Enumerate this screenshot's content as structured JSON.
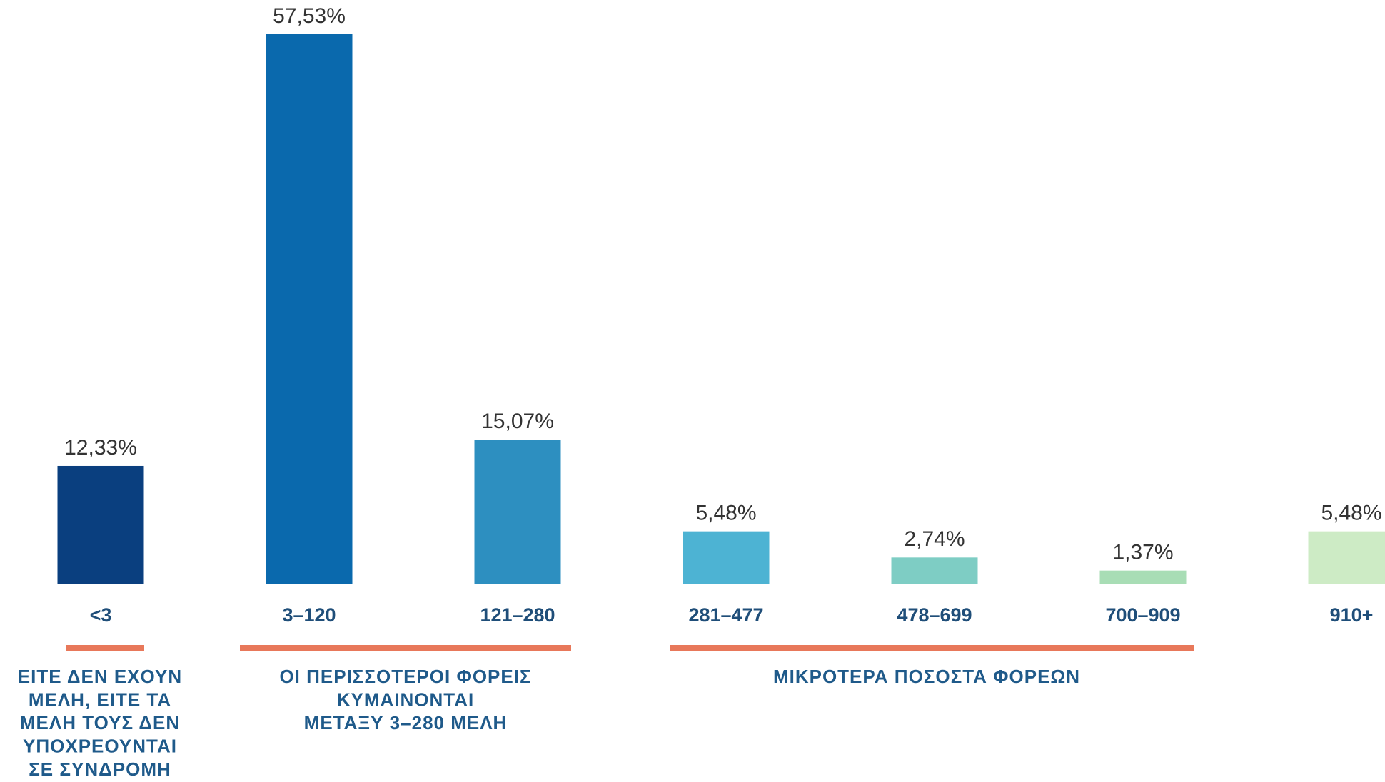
{
  "chart_data": {
    "type": "bar",
    "categories": [
      "<3",
      "3–120",
      "121–280",
      "281–477",
      "478–699",
      "700–909",
      "910+"
    ],
    "values": [
      12.33,
      57.53,
      15.07,
      5.48,
      2.74,
      1.37,
      5.48
    ],
    "value_labels": [
      "12,33%",
      "57,53%",
      "15,07%",
      "5,48%",
      "2,74%",
      "1,37%",
      "5,48%"
    ],
    "colors": [
      "#0a3f7f",
      "#0a69ad",
      "#2d8fc0",
      "#4db3d3",
      "#7ecdc4",
      "#a8ddb5",
      "#cdebc5"
    ],
    "annotations": [
      {
        "lines": [
          "ΕΙΤΕ ΔΕΝ ΕΧΟΥΝ",
          "ΜΕΛΗ, ΕΙΤΕ ΤΑ",
          "ΜΕΛΗ ΤΟΥΣ ΔΕΝ",
          "ΥΠΟΧΡΕΟΥΝΤΑΙ",
          "ΣΕ ΣΥΝΔΡΟΜΗ"
        ]
      },
      {
        "lines": [
          "ΟΙ ΠΕΡΙΣΣΟΤΕΡΟΙ ΦΟΡΕΙΣ",
          "ΚΥΜΑΙΝΟΝΤΑΙ",
          "ΜΕΤΑΞΥ 3–280 ΜΕΛΗ"
        ]
      },
      {
        "lines": [
          "ΜΙΚΡΟΤΕΡΑ ΠΟΣΟΣΤΑ ΦΟΡΕΩΝ"
        ]
      }
    ]
  }
}
